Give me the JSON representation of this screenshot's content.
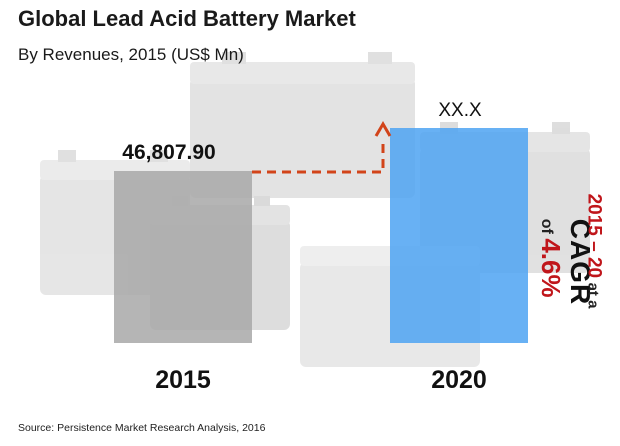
{
  "header": {
    "title": "Global Lead Acid Battery Market",
    "subtitle": "By Revenues, 2015 (US$ Mn)"
  },
  "cagr": {
    "label": "CAGR",
    "of_text": "of",
    "rate": "4.6%",
    "range": "2015 – 20",
    "at_text": "at a"
  },
  "footer": {
    "source": "Source: Persistence Market Research Analysis, 2016"
  },
  "colors": {
    "bar_2015": "#a8a8a8",
    "bar_2020": "#4da3f2",
    "arrow": "#d2441a",
    "accent_red": "#c0161b"
  },
  "chart_data": {
    "type": "bar",
    "categories": [
      "2015",
      "2020"
    ],
    "values": [
      46807.9,
      null
    ],
    "data_labels": [
      "46,807.90",
      "XX.X"
    ],
    "title": "Global Lead Acid Battery Market",
    "subtitle": "By Revenues, 2015 (US$ Mn)",
    "xlabel": "",
    "ylabel": "",
    "grid": false,
    "legend": "none",
    "annotation": "CAGR of 4.6% 2015 – 20"
  }
}
